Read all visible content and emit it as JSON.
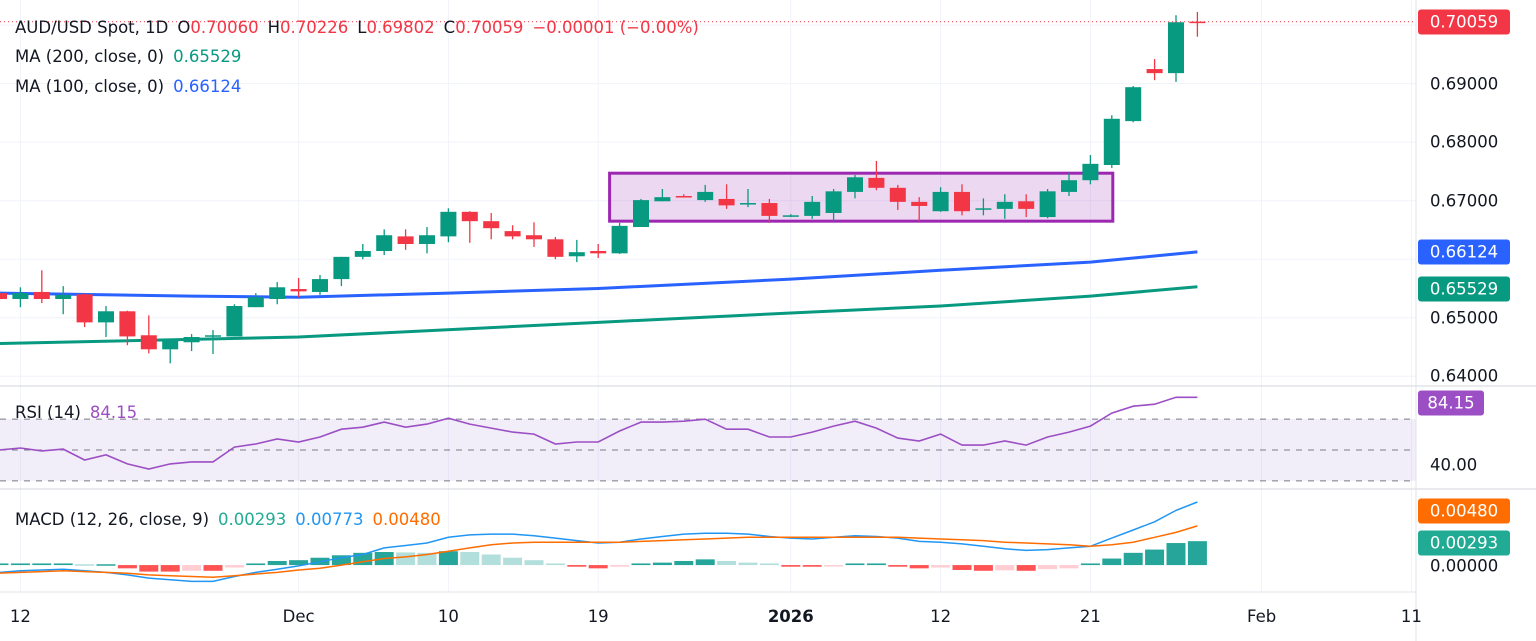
{
  "legend": {
    "symbol": "AUD/USD Spot, 1D",
    "o_label": "O",
    "o": "0.70060",
    "h_label": "H",
    "h": "0.70226",
    "l_label": "L",
    "l": "0.69802",
    "c_label": "C",
    "c": "0.70059",
    "change": "−0.00001 (−0.00%)",
    "ma200_label": "MA (200, close, 0)",
    "ma200_value": "0.65529",
    "ma100_label": "MA (100, close, 0)",
    "ma100_value": "0.66124"
  },
  "rsi_legend": {
    "label": "RSI (14)",
    "value": "84.15"
  },
  "macd_legend": {
    "label": "MACD (12, 26, close, 9)",
    "hist": "0.00293",
    "macd": "0.00773",
    "signal": "0.00480"
  },
  "price_axis": {
    "ticks": [
      "0.69000",
      "0.68000",
      "0.67000",
      "0.65000",
      "0.64000"
    ],
    "last_price": "0.70059",
    "ma100": "0.66124",
    "ma200": "0.65529"
  },
  "rsi_axis": {
    "ticks": [
      "40.00"
    ],
    "value": "84.15"
  },
  "macd_axis": {
    "ticks": [
      "0.00000"
    ],
    "signal": "0.00480",
    "hist": "0.00293"
  },
  "time_axis": [
    {
      "label": "12",
      "date": "2025-11-12",
      "bold": false
    },
    {
      "label": "Dec",
      "date": "2025-12-01",
      "bold": false
    },
    {
      "label": "10",
      "date": "2025-12-10",
      "bold": false
    },
    {
      "label": "19",
      "date": "2025-12-19",
      "bold": false
    },
    {
      "label": "2026",
      "date": "2026-01-01",
      "bold": true
    },
    {
      "label": "12",
      "date": "2026-01-12",
      "bold": false
    },
    {
      "label": "21",
      "date": "2026-01-21",
      "bold": false
    },
    {
      "label": "Feb",
      "date": "2026-02-02",
      "bold": false
    },
    {
      "label": "11",
      "date": "2026-02-11",
      "bold": false
    }
  ],
  "colors": {
    "up": "#089981",
    "down": "#f23645",
    "ma200": "#089981",
    "ma100": "#2962ff",
    "rsi": "#9c4fc4",
    "macd": "#2196f3",
    "signal": "#ff6d00",
    "hist_up_strong": "#26a69a",
    "hist_up_weak": "#b2dfdb",
    "hist_down_strong": "#ff5252",
    "hist_down_weak": "#ffcdd2",
    "box_border": "#9c27b0",
    "text": "#131722"
  },
  "chart_data": {
    "type": "candlestick",
    "title": "AUD/USD Spot, 1D",
    "ylim": [
      0.6385,
      0.7043
    ],
    "dates": [
      "2025-11-11",
      "2025-11-12",
      "2025-11-13",
      "2025-11-14",
      "2025-11-17",
      "2025-11-18",
      "2025-11-19",
      "2025-11-20",
      "2025-11-21",
      "2025-11-24",
      "2025-11-25",
      "2025-11-26",
      "2025-11-27",
      "2025-11-28",
      "2025-12-01",
      "2025-12-02",
      "2025-12-03",
      "2025-12-04",
      "2025-12-05",
      "2025-12-08",
      "2025-12-09",
      "2025-12-10",
      "2025-12-11",
      "2025-12-12",
      "2025-12-15",
      "2025-12-16",
      "2025-12-17",
      "2025-12-18",
      "2025-12-19",
      "2025-12-22",
      "2025-12-23",
      "2025-12-24",
      "2025-12-25",
      "2025-12-26",
      "2025-12-29",
      "2025-12-30",
      "2025-12-31",
      "2026-01-01",
      "2026-01-02",
      "2026-01-05",
      "2026-01-06",
      "2026-01-07",
      "2026-01-08",
      "2026-01-09",
      "2026-01-12",
      "2026-01-13",
      "2026-01-14",
      "2026-01-15",
      "2026-01-16",
      "2026-01-19",
      "2026-01-20",
      "2026-01-21",
      "2026-01-22",
      "2026-01-23",
      "2026-01-26",
      "2026-01-27",
      "2026-01-28"
    ],
    "ohlc": [
      [
        0.6542,
        0.6544,
        0.653,
        0.6532
      ],
      [
        0.6532,
        0.6552,
        0.6518,
        0.6542
      ],
      [
        0.6544,
        0.6581,
        0.6525,
        0.6532
      ],
      [
        0.6532,
        0.6554,
        0.6506,
        0.6539
      ],
      [
        0.654,
        0.6541,
        0.6484,
        0.6492
      ],
      [
        0.6492,
        0.652,
        0.6467,
        0.6511
      ],
      [
        0.6511,
        0.6512,
        0.6453,
        0.6468
      ],
      [
        0.647,
        0.6504,
        0.6439,
        0.6446
      ],
      [
        0.6446,
        0.6463,
        0.6422,
        0.6463
      ],
      [
        0.6458,
        0.6472,
        0.6443,
        0.6467
      ],
      [
        0.6468,
        0.6479,
        0.6438,
        0.647
      ],
      [
        0.6468,
        0.6523,
        0.6468,
        0.652
      ],
      [
        0.6518,
        0.6542,
        0.6518,
        0.6535
      ],
      [
        0.6532,
        0.6561,
        0.6523,
        0.6552
      ],
      [
        0.6549,
        0.6568,
        0.6535,
        0.6545
      ],
      [
        0.6544,
        0.6573,
        0.6539,
        0.6566
      ],
      [
        0.6566,
        0.6604,
        0.6554,
        0.6604
      ],
      [
        0.6604,
        0.6626,
        0.66,
        0.6614
      ],
      [
        0.6614,
        0.6651,
        0.6607,
        0.6641
      ],
      [
        0.6639,
        0.6651,
        0.6616,
        0.6626
      ],
      [
        0.6626,
        0.6655,
        0.661,
        0.6641
      ],
      [
        0.6639,
        0.6687,
        0.6629,
        0.6681
      ],
      [
        0.6681,
        0.6682,
        0.6628,
        0.6665
      ],
      [
        0.6665,
        0.6679,
        0.6634,
        0.6653
      ],
      [
        0.6648,
        0.6658,
        0.6634,
        0.6639
      ],
      [
        0.6641,
        0.6663,
        0.6621,
        0.6634
      ],
      [
        0.6634,
        0.6638,
        0.66,
        0.6604
      ],
      [
        0.6605,
        0.6633,
        0.6595,
        0.6612
      ],
      [
        0.6614,
        0.6626,
        0.6602,
        0.661
      ],
      [
        0.661,
        0.6662,
        0.6609,
        0.6657
      ],
      [
        0.6655,
        0.6703,
        0.6655,
        0.6701
      ],
      [
        0.6699,
        0.672,
        0.6699,
        0.6706
      ],
      [
        0.6708,
        0.6711,
        0.6706,
        0.6706
      ],
      [
        0.6701,
        0.6727,
        0.6698,
        0.6715
      ],
      [
        0.6703,
        0.6728,
        0.6686,
        0.6692
      ],
      [
        0.6694,
        0.672,
        0.6689,
        0.6696
      ],
      [
        0.6696,
        0.6703,
        0.6662,
        0.6674
      ],
      [
        0.6674,
        0.6677,
        0.6672,
        0.6675
      ],
      [
        0.6674,
        0.6708,
        0.6669,
        0.6698
      ],
      [
        0.6679,
        0.672,
        0.6665,
        0.6716
      ],
      [
        0.6715,
        0.6744,
        0.6704,
        0.674
      ],
      [
        0.6739,
        0.6768,
        0.6718,
        0.6722
      ],
      [
        0.6722,
        0.6727,
        0.6684,
        0.6698
      ],
      [
        0.6698,
        0.6706,
        0.6665,
        0.6691
      ],
      [
        0.6682,
        0.6723,
        0.6681,
        0.6715
      ],
      [
        0.6715,
        0.6728,
        0.6675,
        0.6682
      ],
      [
        0.6686,
        0.6704,
        0.6675,
        0.6687
      ],
      [
        0.6686,
        0.6711,
        0.6669,
        0.6698
      ],
      [
        0.6699,
        0.6711,
        0.6672,
        0.6686
      ],
      [
        0.6672,
        0.672,
        0.667,
        0.6716
      ],
      [
        0.6715,
        0.6747,
        0.6708,
        0.6735
      ],
      [
        0.6735,
        0.6778,
        0.6728,
        0.6763
      ],
      [
        0.6761,
        0.6846,
        0.6756,
        0.684
      ],
      [
        0.6836,
        0.6896,
        0.6834,
        0.6894
      ],
      [
        0.6925,
        0.6942,
        0.6906,
        0.6918
      ],
      [
        0.6918,
        0.7017,
        0.6903,
        0.7005
      ],
      [
        0.7006,
        0.70226,
        0.69802,
        0.70059
      ]
    ],
    "ma100": [
      {
        "date": "2025-11-11",
        "value": 0.6542
      },
      {
        "date": "2025-11-24",
        "value": 0.6537
      },
      {
        "date": "2025-12-01",
        "value": 0.6535
      },
      {
        "date": "2025-12-10",
        "value": 0.6542
      },
      {
        "date": "2025-12-19",
        "value": 0.655
      },
      {
        "date": "2026-01-01",
        "value": 0.6566
      },
      {
        "date": "2026-01-12",
        "value": 0.6581
      },
      {
        "date": "2026-01-21",
        "value": 0.6595
      },
      {
        "date": "2026-01-28",
        "value": 0.66124
      }
    ],
    "ma200": [
      {
        "date": "2025-11-11",
        "value": 0.6456
      },
      {
        "date": "2025-12-01",
        "value": 0.6467
      },
      {
        "date": "2025-12-19",
        "value": 0.6492
      },
      {
        "date": "2026-01-01",
        "value": 0.6508
      },
      {
        "date": "2026-01-12",
        "value": 0.652
      },
      {
        "date": "2026-01-21",
        "value": 0.6537
      },
      {
        "date": "2026-01-28",
        "value": 0.65529
      }
    ],
    "box": {
      "start": "2025-12-22",
      "end": "2026-01-22",
      "top": 0.6747,
      "bottom": 0.6665
    },
    "last_price": 0.70059,
    "rsi": {
      "ylim": [
        26,
        91.5
      ],
      "levels": [
        70,
        50,
        30
      ],
      "values": [
        50.0,
        51.3,
        49.4,
        50.6,
        43.5,
        46.8,
        41.0,
        37.7,
        41.0,
        42.3,
        42.3,
        51.9,
        53.9,
        57.1,
        55.2,
        58.4,
        63.5,
        64.8,
        68.1,
        64.8,
        66.8,
        70.6,
        66.8,
        64.2,
        61.6,
        60.3,
        53.9,
        55.2,
        55.2,
        62.3,
        68.1,
        68.1,
        68.7,
        70.0,
        63.5,
        63.5,
        58.4,
        58.4,
        61.6,
        65.5,
        68.7,
        64.2,
        57.7,
        55.8,
        60.3,
        53.2,
        53.2,
        55.8,
        53.2,
        58.4,
        61.6,
        65.5,
        73.9,
        78.4,
        79.7,
        84.2,
        84.15
      ]
    },
    "macd": {
      "ylim": [
        -0.0033,
        0.0092
      ],
      "macd": [
        -0.0009,
        -0.0007,
        -0.0006,
        -0.0005,
        -0.0007,
        -0.0009,
        -0.0012,
        -0.0016,
        -0.0018,
        -0.002,
        -0.002,
        -0.0014,
        -0.0009,
        -0.0005,
        -0.0001,
        0.0004,
        0.0009,
        0.0013,
        0.0021,
        0.0024,
        0.0027,
        0.0034,
        0.0037,
        0.0038,
        0.0038,
        0.0036,
        0.0033,
        0.003,
        0.0027,
        0.0028,
        0.0032,
        0.0035,
        0.0038,
        0.0039,
        0.0039,
        0.0038,
        0.0035,
        0.0033,
        0.0032,
        0.0034,
        0.0036,
        0.0035,
        0.0033,
        0.0029,
        0.0028,
        0.0026,
        0.0023,
        0.002,
        0.0018,
        0.0019,
        0.0021,
        0.0023,
        0.0033,
        0.0043,
        0.0053,
        0.0067,
        0.00773
      ],
      "signal": [
        -0.001,
        -0.0009,
        -0.0008,
        -0.0007,
        -0.0008,
        -0.0009,
        -0.001,
        -0.0012,
        -0.0013,
        -0.0014,
        -0.0015,
        -0.0013,
        -0.0011,
        -0.0009,
        -0.0006,
        -0.0004,
        0.0,
        0.0004,
        0.0008,
        0.001,
        0.0013,
        0.0017,
        0.0021,
        0.0025,
        0.0027,
        0.0028,
        0.0028,
        0.0028,
        0.0028,
        0.0028,
        0.0029,
        0.003,
        0.0031,
        0.0032,
        0.0033,
        0.0034,
        0.0034,
        0.0034,
        0.0034,
        0.0034,
        0.0034,
        0.0034,
        0.0034,
        0.0033,
        0.0032,
        0.0031,
        0.003,
        0.0028,
        0.0027,
        0.0026,
        0.0025,
        0.0023,
        0.0025,
        0.0028,
        0.0034,
        0.004,
        0.0048
      ],
      "histogram": [
        0.0002,
        0.0002,
        0.0002,
        0.0002,
        0.0001,
        0.0001,
        -0.0004,
        -0.0008,
        -0.0008,
        -0.0007,
        -0.0007,
        -0.0003,
        0.0002,
        0.0005,
        0.0006,
        0.0009,
        0.0012,
        0.0015,
        0.0016,
        0.00155,
        0.0015,
        0.0017,
        0.0016,
        0.0013,
        0.0009,
        0.0006,
        0.0002,
        -0.0002,
        -0.0004,
        -0.0002,
        0.0002,
        0.0003,
        0.0005,
        0.0007,
        0.0005,
        0.0003,
        0.0002,
        -0.0002,
        -0.0002,
        -0.0001,
        0.0002,
        0.0002,
        -0.0002,
        -0.0004,
        -0.0003,
        -0.0006,
        -0.0007,
        -0.00065,
        -0.0007,
        -0.0005,
        -0.0004,
        0.0002,
        0.0008,
        0.0015,
        0.0019,
        0.0027,
        0.00293
      ]
    }
  }
}
